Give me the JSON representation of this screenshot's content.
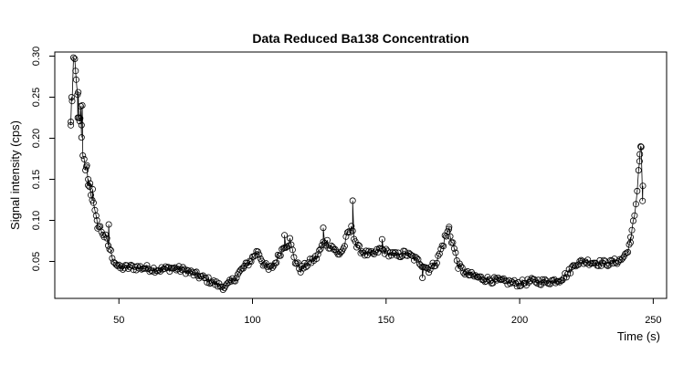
{
  "chart_data": {
    "type": "scatter",
    "title": "Data Reduced Ba138 Concentration",
    "xlabel": "Time (s)",
    "ylabel": "Signal intensity (cps)",
    "xlim": [
      26,
      255
    ],
    "ylim": [
      0.005,
      0.305
    ],
    "xticks": [
      50,
      100,
      150,
      200,
      250
    ],
    "yticks": [
      0.05,
      0.1,
      0.15,
      0.2,
      0.25,
      0.3
    ],
    "ytick_labels": [
      "0.05",
      "0.10",
      "0.15",
      "0.20",
      "0.25",
      "0.30"
    ],
    "grid": false,
    "legend": "none",
    "marker": "open-circle",
    "connecting_line": true,
    "colors": {
      "points": "#000000",
      "background": "#ffffff"
    },
    "anchors": [
      [
        32.0,
        0.212
      ],
      [
        32.5,
        0.25
      ],
      [
        33.0,
        0.295
      ],
      [
        33.4,
        0.288
      ],
      [
        33.8,
        0.275
      ],
      [
        34.3,
        0.255
      ],
      [
        34.8,
        0.24
      ],
      [
        35.5,
        0.215
      ],
      [
        36.0,
        0.196
      ],
      [
        36.5,
        0.171
      ],
      [
        37.2,
        0.168
      ],
      [
        38.0,
        0.16
      ],
      [
        39.0,
        0.14
      ],
      [
        40.0,
        0.128
      ],
      [
        41.0,
        0.108
      ],
      [
        42.0,
        0.095
      ],
      [
        44.0,
        0.085
      ],
      [
        46.0,
        0.07
      ],
      [
        48.0,
        0.052
      ],
      [
        50.0,
        0.042
      ],
      [
        55.0,
        0.043
      ],
      [
        60.0,
        0.042
      ],
      [
        65.0,
        0.04
      ],
      [
        70.0,
        0.042
      ],
      [
        75.0,
        0.039
      ],
      [
        80.0,
        0.032
      ],
      [
        85.0,
        0.025
      ],
      [
        88.0,
        0.02
      ],
      [
        90.0,
        0.019
      ],
      [
        93.0,
        0.028
      ],
      [
        96.0,
        0.04
      ],
      [
        99.0,
        0.05
      ],
      [
        102.0,
        0.063
      ],
      [
        104.0,
        0.048
      ],
      [
        106.0,
        0.04
      ],
      [
        108.0,
        0.045
      ],
      [
        110.0,
        0.058
      ],
      [
        112.0,
        0.07
      ],
      [
        114.0,
        0.075
      ],
      [
        116.0,
        0.05
      ],
      [
        118.0,
        0.04
      ],
      [
        121.0,
        0.048
      ],
      [
        124.0,
        0.055
      ],
      [
        127.0,
        0.075
      ],
      [
        130.0,
        0.068
      ],
      [
        132.0,
        0.058
      ],
      [
        134.0,
        0.065
      ],
      [
        136.0,
        0.085
      ],
      [
        137.5,
        0.09
      ],
      [
        139.0,
        0.068
      ],
      [
        142.0,
        0.06
      ],
      [
        145.0,
        0.058
      ],
      [
        148.0,
        0.065
      ],
      [
        151.0,
        0.06
      ],
      [
        154.0,
        0.057
      ],
      [
        157.0,
        0.06
      ],
      [
        160.0,
        0.055
      ],
      [
        163.0,
        0.048
      ],
      [
        166.0,
        0.04
      ],
      [
        169.0,
        0.05
      ],
      [
        172.0,
        0.078
      ],
      [
        173.5,
        0.088
      ],
      [
        175.0,
        0.072
      ],
      [
        177.0,
        0.045
      ],
      [
        180.0,
        0.035
      ],
      [
        185.0,
        0.03
      ],
      [
        190.0,
        0.027
      ],
      [
        195.0,
        0.025
      ],
      [
        200.0,
        0.023
      ],
      [
        205.0,
        0.026
      ],
      [
        210.0,
        0.025
      ],
      [
        215.0,
        0.028
      ],
      [
        218.0,
        0.035
      ],
      [
        221.0,
        0.048
      ],
      [
        225.0,
        0.05
      ],
      [
        230.0,
        0.048
      ],
      [
        234.0,
        0.048
      ],
      [
        238.0,
        0.052
      ],
      [
        240.0,
        0.06
      ],
      [
        241.5,
        0.075
      ],
      [
        242.5,
        0.095
      ],
      [
        243.5,
        0.12
      ],
      [
        244.5,
        0.16
      ],
      [
        245.0,
        0.185
      ],
      [
        245.5,
        0.19
      ],
      [
        246.0,
        0.12
      ],
      [
        246.3,
        0.094
      ]
    ],
    "spikes": [
      [
        32.0,
        0.22
      ],
      [
        32.3,
        0.25
      ],
      [
        33.8,
        0.282
      ],
      [
        34.6,
        0.225
      ],
      [
        34.8,
        0.256
      ],
      [
        35.3,
        0.221
      ],
      [
        35.7,
        0.239
      ],
      [
        36.0,
        0.216
      ],
      [
        36.3,
        0.24
      ],
      [
        37.8,
        0.165
      ],
      [
        38.5,
        0.15
      ],
      [
        39.2,
        0.145
      ],
      [
        40.2,
        0.138
      ],
      [
        41.8,
        0.1
      ],
      [
        46.2,
        0.095
      ],
      [
        137.5,
        0.124
      ],
      [
        126.5,
        0.091
      ],
      [
        112.0,
        0.082
      ],
      [
        148.5,
        0.077
      ],
      [
        173.6,
        0.092
      ],
      [
        163.6,
        0.03
      ],
      [
        244.9,
        0.172
      ],
      [
        245.3,
        0.19
      ],
      [
        241.5,
        0.073
      ],
      [
        246.1,
        0.142
      ]
    ]
  }
}
